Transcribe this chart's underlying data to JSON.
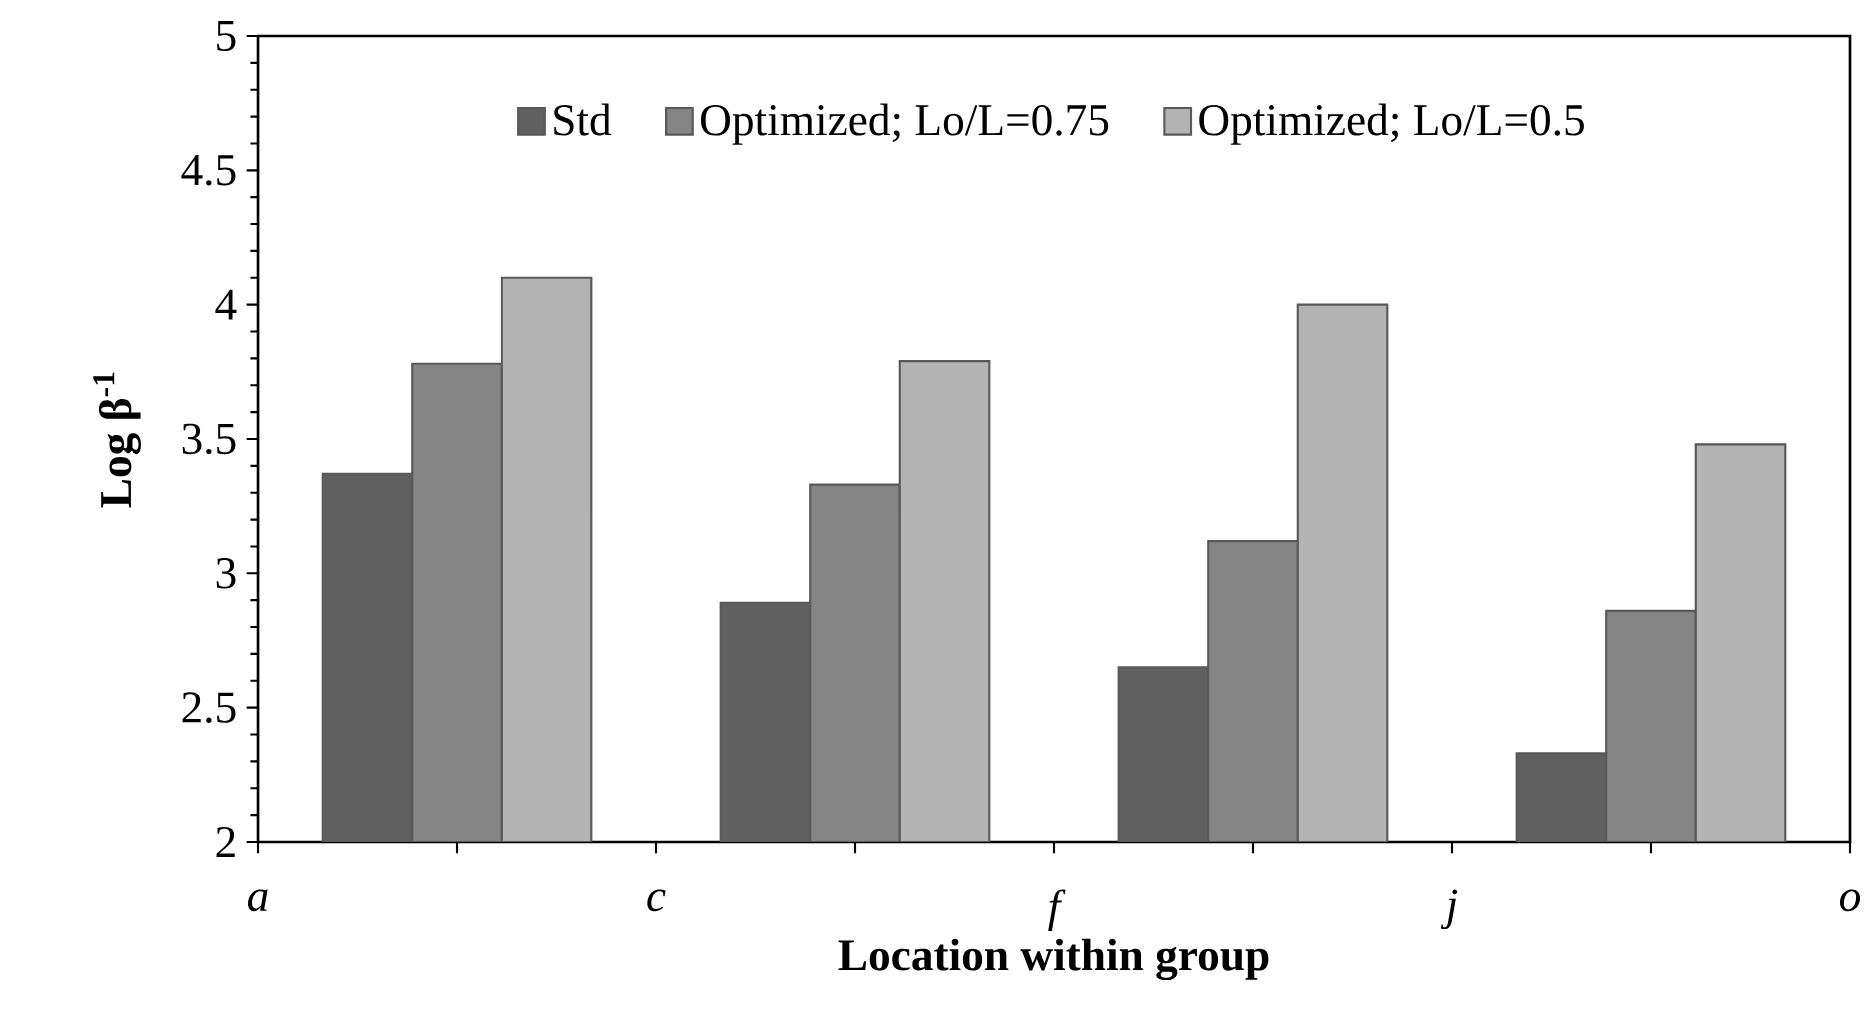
{
  "chart_data": {
    "type": "bar",
    "xlabel": "Location within group",
    "ylabel": "Log β$^{-1}$",
    "categories": [
      "a",
      null,
      "c",
      null,
      "f",
      null,
      "j",
      null,
      "o"
    ],
    "ylim": [
      2,
      5
    ],
    "yticks": [
      2,
      2.5,
      3,
      3.5,
      4,
      4.5,
      5
    ],
    "series": [
      {
        "name": "Std",
        "color": "#606060",
        "values": [
          null,
          3.37,
          null,
          2.89,
          null,
          2.65,
          null,
          2.33,
          null
        ]
      },
      {
        "name": "Optimized; Lo/L=0.75",
        "color": "#858585",
        "values": [
          null,
          3.78,
          null,
          3.33,
          null,
          3.12,
          null,
          2.86,
          null
        ]
      },
      {
        "name": "Optimized; Lo/L=0.5",
        "color": "#b3b3b3",
        "values": [
          null,
          4.1,
          null,
          3.79,
          null,
          4.0,
          null,
          3.48,
          null
        ]
      }
    ],
    "legend": "top",
    "grid": false
  }
}
